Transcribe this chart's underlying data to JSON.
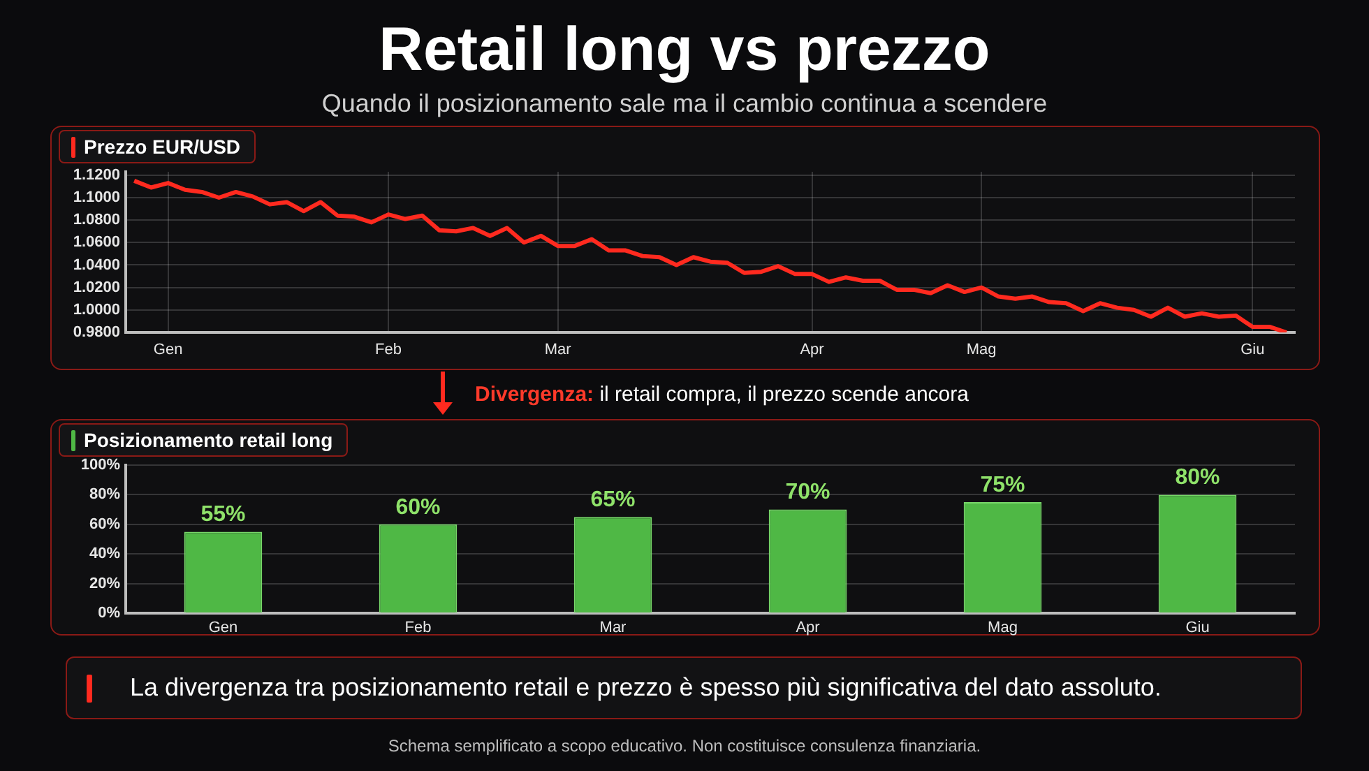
{
  "chart_data": [
    {
      "type": "other",
      "title": "Retail long vs prezzo",
      "subtitle": "Quando il posizionamento sale ma il cambio continua a scendere"
    },
    {
      "type": "line",
      "title": "Prezzo EUR/USD",
      "marker": "none",
      "grid": true,
      "categories": [
        null,
        null,
        "Gen",
        null,
        null,
        null,
        null,
        null,
        null,
        null,
        null,
        null,
        null,
        null,
        null,
        "Feb",
        null,
        null,
        null,
        null,
        null,
        null,
        null,
        null,
        null,
        "Mar",
        null,
        null,
        null,
        null,
        null,
        null,
        null,
        null,
        null,
        null,
        null,
        null,
        null,
        null,
        "Apr",
        null,
        null,
        null,
        null,
        null,
        null,
        null,
        null,
        null,
        "Mag",
        null,
        null,
        null,
        null,
        null,
        null,
        null,
        null,
        null,
        null,
        null,
        null,
        null,
        null,
        null,
        "Giu",
        null,
        null
      ],
      "ylim": [
        0.98,
        1.123
      ],
      "yticks": [
        {
          "value": 0.98,
          "label": "0.9800"
        },
        {
          "value": 1.0,
          "label": "1.0000"
        },
        {
          "value": 1.02,
          "label": "1.0200"
        },
        {
          "value": 1.04,
          "label": "1.0400"
        },
        {
          "value": 1.06,
          "label": "1.0600"
        },
        {
          "value": 1.08,
          "label": "1.0800"
        },
        {
          "value": 1.1,
          "label": "1.1000"
        },
        {
          "value": 1.12,
          "label": "1.1200"
        }
      ],
      "series": [
        {
          "color": "#ff2a1f",
          "values": [
            1.115,
            1.109,
            1.113,
            1.107,
            1.105,
            1.1,
            1.105,
            1.101,
            1.094,
            1.096,
            1.088,
            1.096,
            1.084,
            1.083,
            1.078,
            1.085,
            1.081,
            1.084,
            1.071,
            1.07,
            1.073,
            1.066,
            1.073,
            1.06,
            1.066,
            1.057,
            1.057,
            1.063,
            1.053,
            1.053,
            1.048,
            1.047,
            1.04,
            1.047,
            1.043,
            1.042,
            1.033,
            1.034,
            1.039,
            1.032,
            1.032,
            1.025,
            1.029,
            1.026,
            1.026,
            1.018,
            1.018,
            1.015,
            1.022,
            1.016,
            1.02,
            1.012,
            1.01,
            1.012,
            1.007,
            1.006,
            0.999,
            1.006,
            1.002,
            1.0,
            0.994,
            1.002,
            0.994,
            0.997,
            0.994,
            0.995,
            0.985,
            0.985,
            0.98
          ]
        }
      ]
    },
    {
      "type": "bar",
      "title": "Posizionamento retail long",
      "categories": [
        "Gen",
        "Feb",
        "Mar",
        "Apr",
        "Mag",
        "Giu"
      ],
      "values": [
        55,
        60,
        65,
        70,
        75,
        80
      ],
      "color": "#4fb845",
      "grid": "y",
      "ylim": [
        0,
        100
      ],
      "yticks": [
        {
          "value": 0,
          "label": "0%"
        },
        {
          "value": 20,
          "label": "20%"
        },
        {
          "value": 40,
          "label": "40%"
        },
        {
          "value": 60,
          "label": "60%"
        },
        {
          "value": 80,
          "label": "80%"
        },
        {
          "value": 100,
          "label": "100%"
        }
      ],
      "value_labels": [
        "55%",
        "60%",
        "65%",
        "70%",
        "75%",
        "80%"
      ],
      "annotations": [
        "Divergenza: il retail compra, il prezzo scende ancora",
        "La divergenza tra posizionamento retail e prezzo è spesso più significativa del dato assoluto.",
        "Schema semplificato a scopo educativo. Non costituisce consulenza finanziaria."
      ]
    }
  ]
}
